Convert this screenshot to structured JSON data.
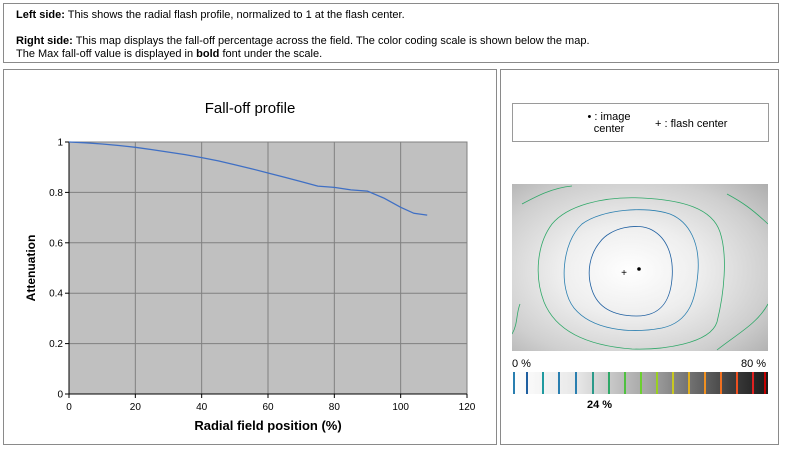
{
  "info": {
    "left_label": "Left side:",
    "left_text": " This shows the radial flash profile, normalized to 1 at the flash center.",
    "right_label": "Right side:",
    "right_text": " This map displays the fall-off percentage across the field. The color coding scale is shown below the map.",
    "line3_pre": "The Max fall-off value is displayed in ",
    "line3_bold": "bold",
    "line3_post": " font under the scale."
  },
  "chart_data": {
    "type": "line",
    "title": "Fall-off profile",
    "xlabel": "Radial field position (%)",
    "ylabel": "Attenuation",
    "xlim": [
      0,
      120
    ],
    "ylim": [
      0,
      1
    ],
    "xticks": [
      0,
      20,
      40,
      60,
      80,
      100,
      120
    ],
    "yticks": [
      0,
      0.2,
      0.4,
      0.6,
      0.8,
      1
    ],
    "ytick_labels": [
      "0",
      "0.2",
      "0.4",
      "0.6",
      "0.8",
      "1"
    ],
    "grid": true,
    "series": [
      {
        "color": "#3f6fc4",
        "x": [
          0,
          5,
          10,
          15,
          20,
          25,
          30,
          35,
          40,
          45,
          50,
          55,
          60,
          65,
          70,
          75,
          80,
          85,
          90,
          95,
          100,
          104,
          108
        ],
        "y": [
          1.0,
          0.997,
          0.992,
          0.986,
          0.979,
          0.97,
          0.96,
          0.95,
          0.938,
          0.925,
          0.91,
          0.894,
          0.877,
          0.86,
          0.843,
          0.825,
          0.82,
          0.81,
          0.805,
          0.777,
          0.741,
          0.717,
          0.71
        ]
      }
    ]
  },
  "legend": {
    "image_center_label": "• : image\ncenter",
    "flash_center_label": "+ : flash center"
  },
  "scale": {
    "min_label": "0 %",
    "max_label": "80 %",
    "max_value": "24 %"
  },
  "colors": {
    "panel_border": "#8a8a8a",
    "plot_bg": "#c0c0c0",
    "line": "#3f6fc4"
  }
}
